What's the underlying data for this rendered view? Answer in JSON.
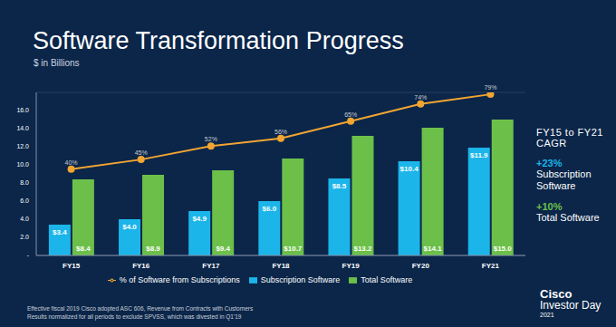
{
  "chart_data": {
    "type": "bar",
    "title": "Software Transformation Progress",
    "subtitle": "$ in Billions",
    "categories": [
      "FY15",
      "FY16",
      "FY17",
      "FY18",
      "FY19",
      "FY20",
      "FY21"
    ],
    "series": [
      {
        "name": "Subscription Software",
        "type": "bar",
        "color": "#1bb5ea",
        "values": [
          3.4,
          4.0,
          4.9,
          6.0,
          8.5,
          10.4,
          11.9
        ],
        "value_labels": [
          "$3.4",
          "$4.0",
          "$4.9",
          "$6.0",
          "$8.5",
          "$10.4",
          "$11.9"
        ]
      },
      {
        "name": "Total Software",
        "type": "bar",
        "color": "#6cc04a",
        "values": [
          8.4,
          8.9,
          9.4,
          10.7,
          13.2,
          14.1,
          15.0
        ],
        "value_labels": [
          "$8.4",
          "$8.9",
          "$9.4",
          "$10.7",
          "$13.2",
          "$14.1",
          "$15.0"
        ]
      },
      {
        "name": "% of Software from Subscriptions",
        "type": "line",
        "color": "#f2a531",
        "axis": "y2",
        "marker": "circle",
        "values": [
          40,
          45,
          52,
          56,
          65,
          74,
          79
        ],
        "value_labels": [
          "40%",
          "45%",
          "52%",
          "56%",
          "65%",
          "74%",
          "79%"
        ]
      }
    ],
    "ylim": [
      0,
      18
    ],
    "yticks": [
      {
        "value": 0,
        "label": "-"
      },
      {
        "value": 2,
        "label": "2.0"
      },
      {
        "value": 4,
        "label": "4.0"
      },
      {
        "value": 6,
        "label": "6.0"
      },
      {
        "value": 8,
        "label": "8.0"
      },
      {
        "value": 10,
        "label": "10.0"
      },
      {
        "value": 12,
        "label": "12.0"
      },
      {
        "value": 14,
        "label": "14.0"
      },
      {
        "value": 16,
        "label": "16.0"
      }
    ],
    "y2lim": [
      -5,
      80
    ],
    "grid": true,
    "legend": "bottom",
    "data_labels": true,
    "annotations": {
      "cagr_heading": [
        "FY15 to FY21",
        "CAGR"
      ],
      "cagr_items": [
        {
          "value": "+23%",
          "label": "Subscription Software",
          "color": "#1bb5ea"
        },
        {
          "value": "+10%",
          "label": "Total Software",
          "color": "#6cc04a"
        }
      ]
    },
    "footnotes": [
      "Effective fiscal 2019 Cisco adopted ASC 606, Revenue from Contracts with Customers",
      "Results normalized for all periods to exclude SPVSS, which was divested in Q1'19"
    ],
    "branding": {
      "company": "Cisco",
      "event": "Investor Day",
      "year": "2021"
    }
  }
}
